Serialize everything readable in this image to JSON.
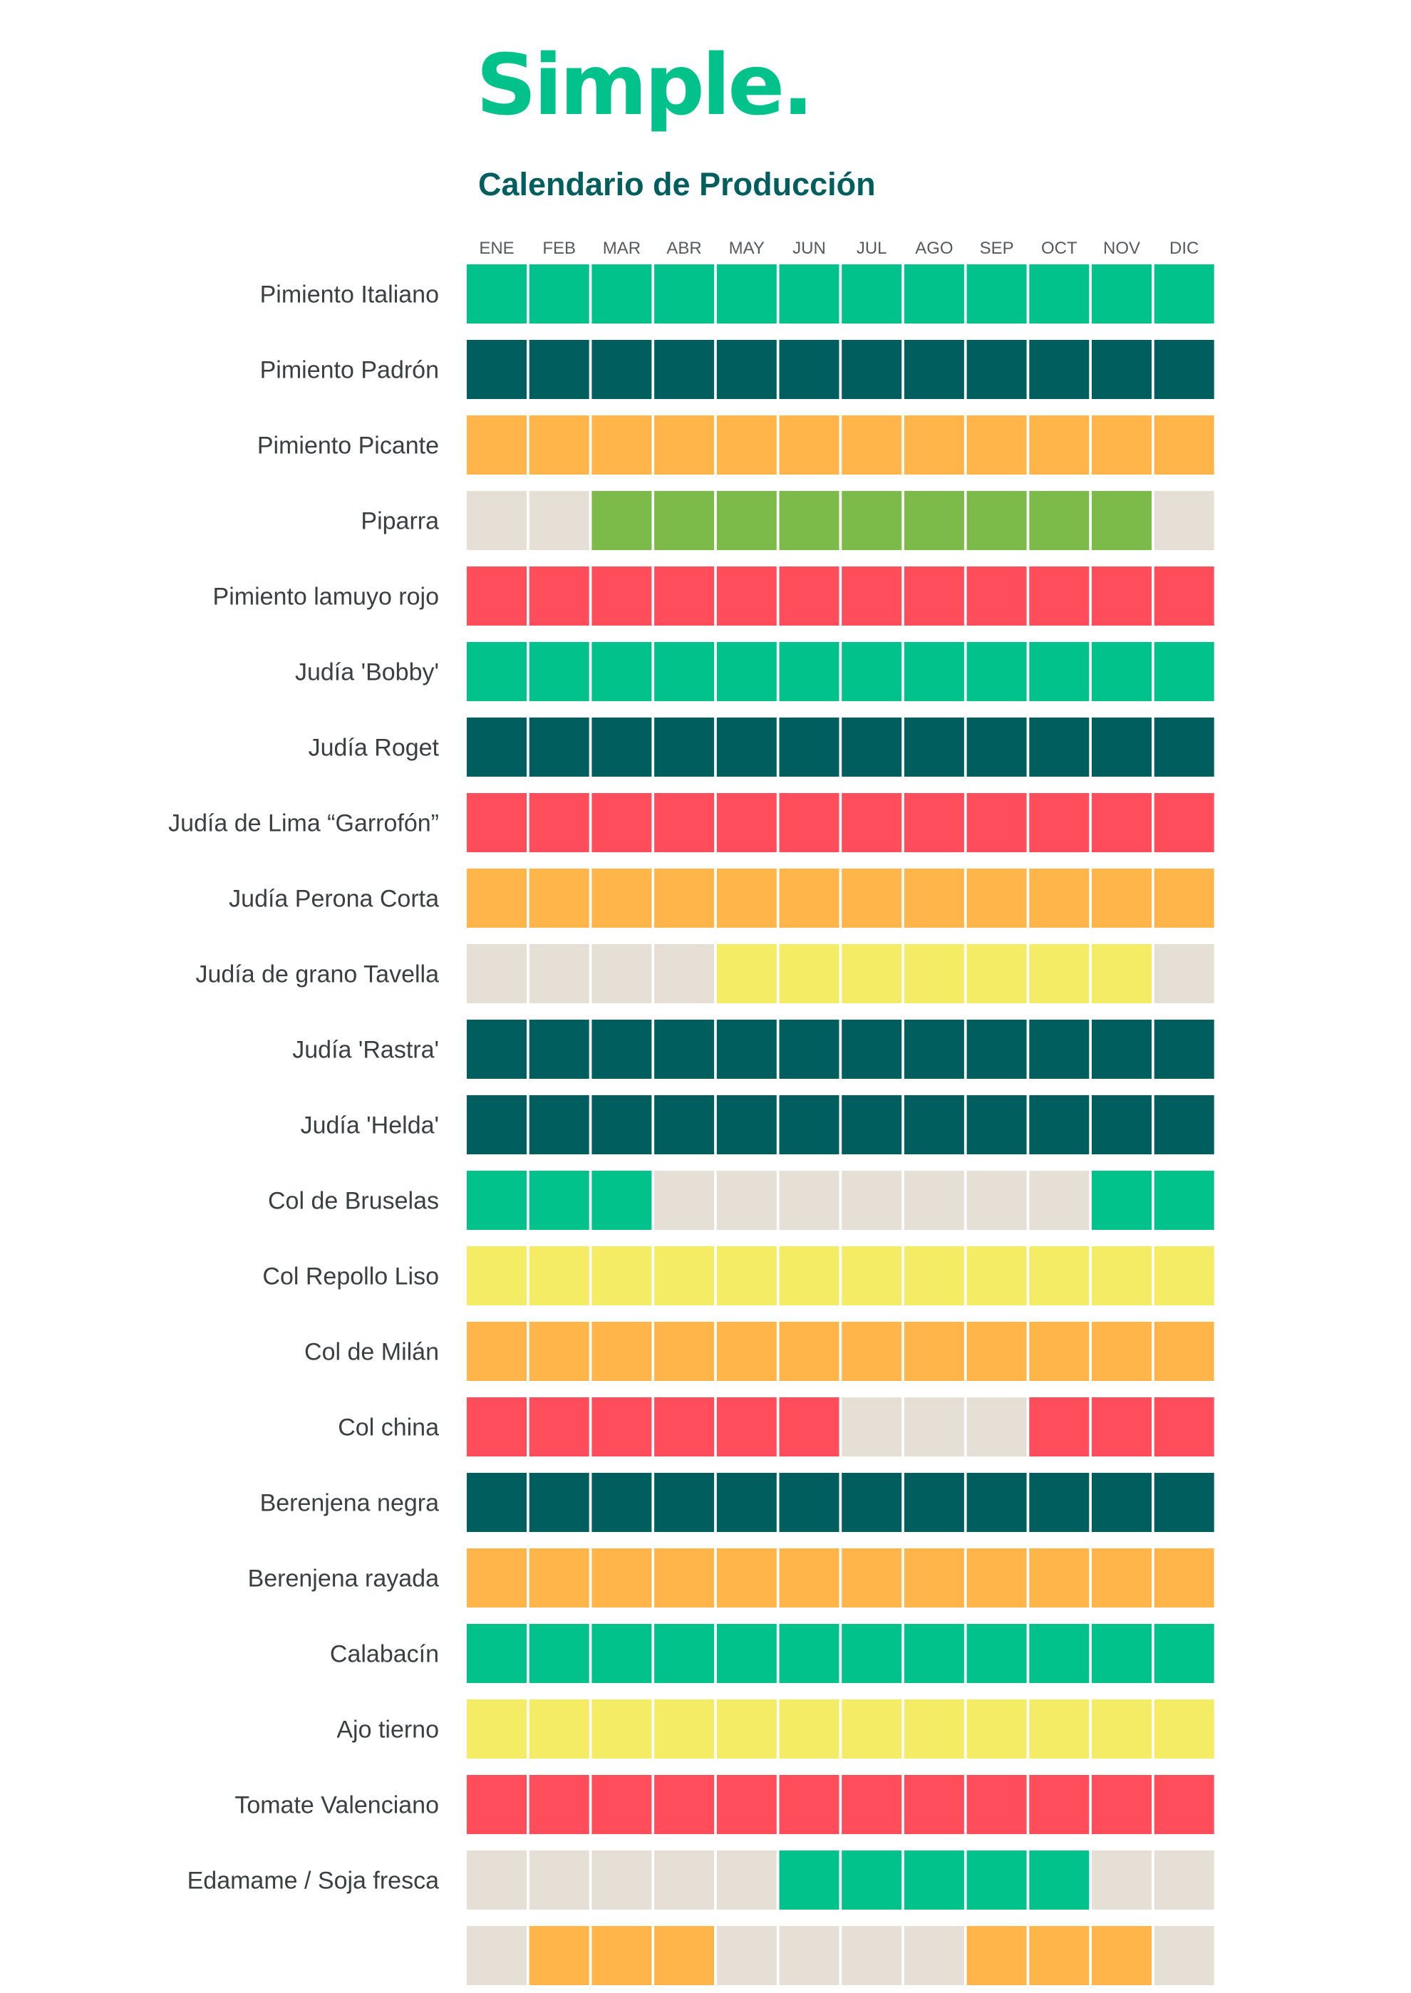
{
  "logo": {
    "text": "Simple."
  },
  "title": "Calendario de Producción",
  "colors": {
    "brand": "#00c28a",
    "title": "#005e5e",
    "off": "#e6dfd6",
    "palette": {
      "green": "#00c28a",
      "teal": "#005e5e",
      "orange": "#ffb54a",
      "lime": "#7cba4a",
      "red": "#ff4d5c",
      "yellow": "#f5ec66",
      "off": "#e6dfd6"
    }
  },
  "chart_data": {
    "type": "heatmap",
    "title": "Calendario de Producción",
    "months": [
      "ENE",
      "FEB",
      "MAR",
      "ABR",
      "MAY",
      "JUN",
      "JUL",
      "AGO",
      "SEP",
      "OCT",
      "NOV",
      "DIC"
    ],
    "legend": "none",
    "rows": [
      {
        "label": "Pimiento Italiano",
        "color": "green",
        "active": [
          1,
          1,
          1,
          1,
          1,
          1,
          1,
          1,
          1,
          1,
          1,
          1
        ]
      },
      {
        "label": "Pimiento Padrón",
        "color": "teal",
        "active": [
          1,
          1,
          1,
          1,
          1,
          1,
          1,
          1,
          1,
          1,
          1,
          1
        ]
      },
      {
        "label": "Pimiento Picante",
        "color": "orange",
        "active": [
          1,
          1,
          1,
          1,
          1,
          1,
          1,
          1,
          1,
          1,
          1,
          1
        ]
      },
      {
        "label": "Piparra",
        "color": "lime",
        "active": [
          0,
          0,
          1,
          1,
          1,
          1,
          1,
          1,
          1,
          1,
          1,
          0
        ]
      },
      {
        "label": "Pimiento lamuyo rojo",
        "color": "red",
        "active": [
          1,
          1,
          1,
          1,
          1,
          1,
          1,
          1,
          1,
          1,
          1,
          1
        ]
      },
      {
        "label": "Judía 'Bobby'",
        "color": "green",
        "active": [
          1,
          1,
          1,
          1,
          1,
          1,
          1,
          1,
          1,
          1,
          1,
          1
        ]
      },
      {
        "label": "Judía Roget",
        "color": "teal",
        "active": [
          1,
          1,
          1,
          1,
          1,
          1,
          1,
          1,
          1,
          1,
          1,
          1
        ]
      },
      {
        "label": "Judía de Lima “Garrofón”",
        "color": "red",
        "active": [
          1,
          1,
          1,
          1,
          1,
          1,
          1,
          1,
          1,
          1,
          1,
          1
        ]
      },
      {
        "label": "Judía Perona Corta",
        "color": "orange",
        "active": [
          1,
          1,
          1,
          1,
          1,
          1,
          1,
          1,
          1,
          1,
          1,
          1
        ]
      },
      {
        "label": "Judía de grano Tavella",
        "color": "yellow",
        "active": [
          0,
          0,
          0,
          0,
          1,
          1,
          1,
          1,
          1,
          1,
          1,
          0
        ]
      },
      {
        "label": "Judía 'Rastra'",
        "color": "teal",
        "active": [
          1,
          1,
          1,
          1,
          1,
          1,
          1,
          1,
          1,
          1,
          1,
          1
        ]
      },
      {
        "label": "Judía 'Helda'",
        "color": "teal",
        "active": [
          1,
          1,
          1,
          1,
          1,
          1,
          1,
          1,
          1,
          1,
          1,
          1
        ]
      },
      {
        "label": "Col de Bruselas",
        "color": "green",
        "active": [
          1,
          1,
          1,
          0,
          0,
          0,
          0,
          0,
          0,
          0,
          1,
          1
        ]
      },
      {
        "label": "Col Repollo Liso",
        "color": "yellow",
        "active": [
          1,
          1,
          1,
          1,
          1,
          1,
          1,
          1,
          1,
          1,
          1,
          1
        ]
      },
      {
        "label": "Col de Milán",
        "color": "orange",
        "active": [
          1,
          1,
          1,
          1,
          1,
          1,
          1,
          1,
          1,
          1,
          1,
          1
        ]
      },
      {
        "label": "Col china",
        "color": "red",
        "active": [
          1,
          1,
          1,
          1,
          1,
          1,
          0,
          0,
          0,
          1,
          1,
          1
        ]
      },
      {
        "label": "Berenjena negra",
        "color": "teal",
        "active": [
          1,
          1,
          1,
          1,
          1,
          1,
          1,
          1,
          1,
          1,
          1,
          1
        ]
      },
      {
        "label": "Berenjena rayada",
        "color": "orange",
        "active": [
          1,
          1,
          1,
          1,
          1,
          1,
          1,
          1,
          1,
          1,
          1,
          1
        ]
      },
      {
        "label": "Calabacín",
        "color": "green",
        "active": [
          1,
          1,
          1,
          1,
          1,
          1,
          1,
          1,
          1,
          1,
          1,
          1
        ]
      },
      {
        "label": "Ajo tierno",
        "color": "yellow",
        "active": [
          1,
          1,
          1,
          1,
          1,
          1,
          1,
          1,
          1,
          1,
          1,
          1
        ]
      },
      {
        "label": "Tomate Valenciano",
        "color": "red",
        "active": [
          1,
          1,
          1,
          1,
          1,
          1,
          1,
          1,
          1,
          1,
          1,
          1
        ]
      },
      {
        "label": "Edamame / Soja fresca",
        "color": "green",
        "active": [
          0,
          0,
          0,
          0,
          0,
          1,
          1,
          1,
          1,
          1,
          0,
          0
        ]
      },
      {
        "label": "",
        "color": "orange",
        "active": [
          0,
          1,
          1,
          1,
          0,
          0,
          0,
          0,
          1,
          1,
          1,
          0
        ]
      }
    ]
  }
}
